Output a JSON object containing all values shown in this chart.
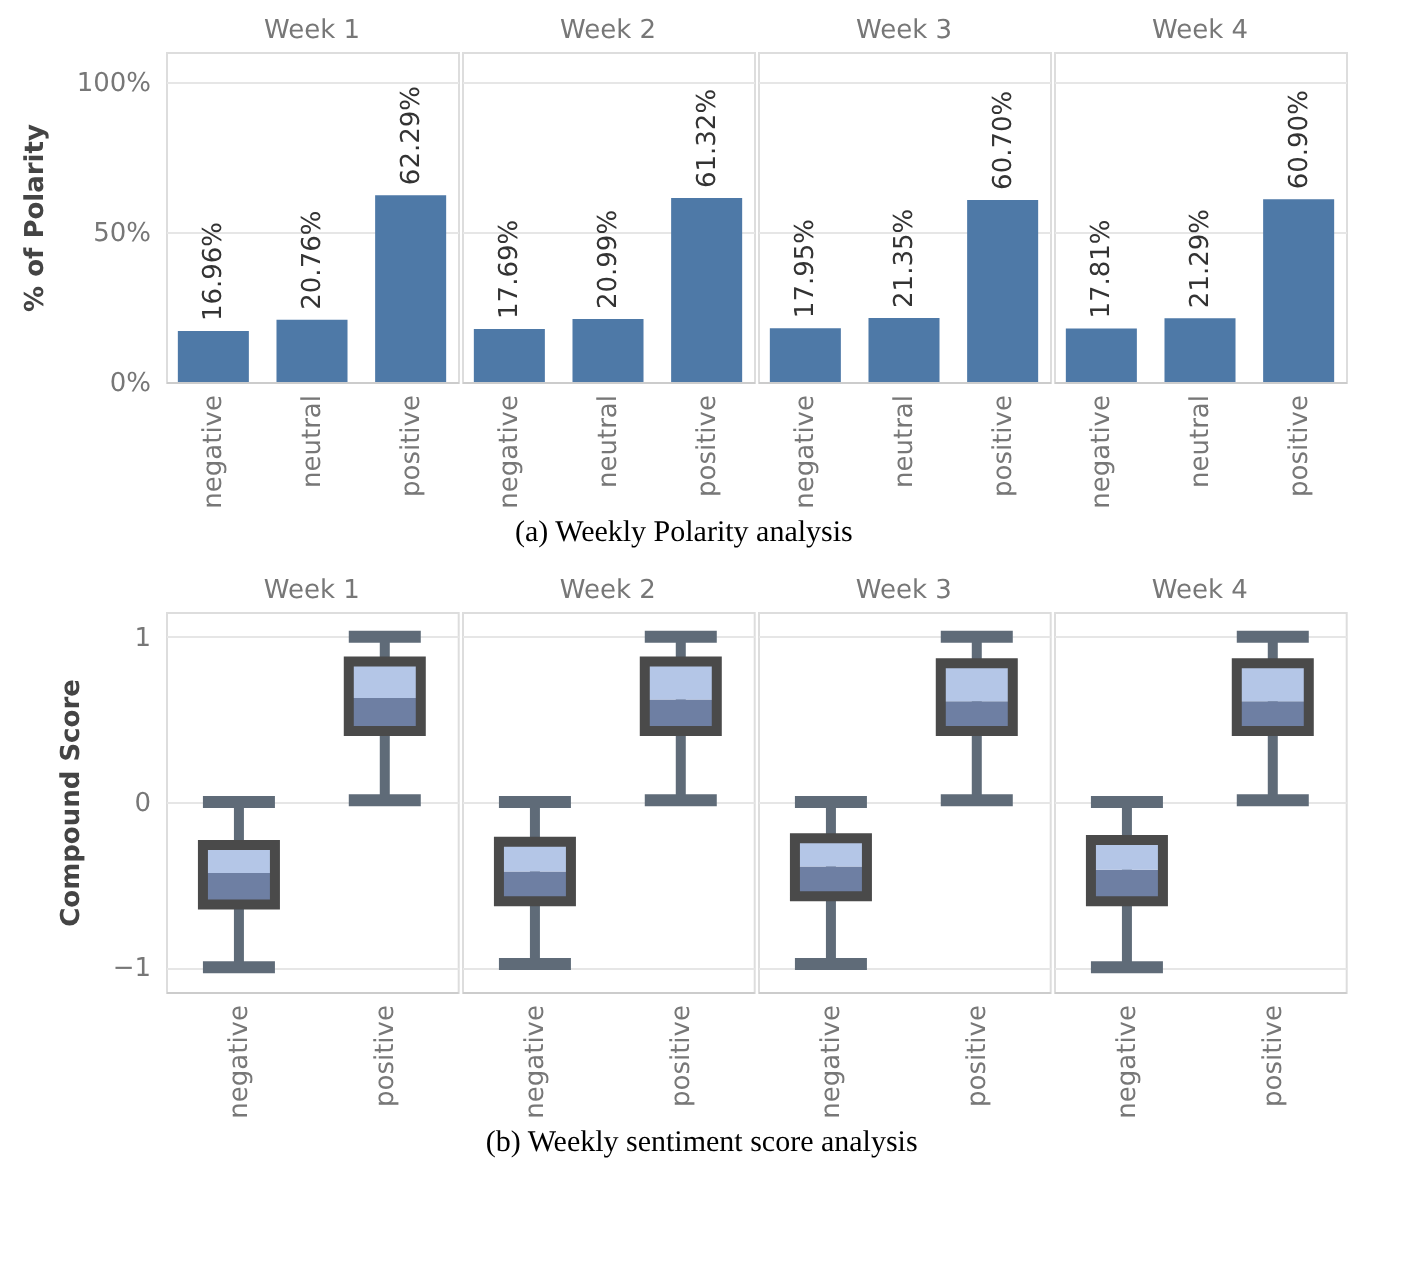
{
  "chart_data": [
    {
      "type": "bar",
      "title": "Week 1",
      "ylabel": "% of Polarity",
      "annotations": [
        "(a)      Weekly Polarity analysis"
      ],
      "categories": [
        "negative",
        "neutral",
        "positive"
      ],
      "values": [
        16.96,
        20.76,
        62.29
      ],
      "value_labels": [
        "16.96%",
        "20.76%",
        "62.29%"
      ],
      "color": "#4e79a7",
      "ylim": [
        0,
        110
      ],
      "yticks": [
        {
          "value": 0,
          "label": "0%"
        },
        {
          "value": 50,
          "label": "50%"
        },
        {
          "value": 100,
          "label": "100%"
        }
      ],
      "grid": "y"
    },
    {
      "type": "bar",
      "title": "Week 2",
      "categories": [
        "negative",
        "neutral",
        "positive"
      ],
      "values": [
        17.69,
        20.99,
        61.32
      ],
      "value_labels": [
        "17.69%",
        "20.99%",
        "61.32%"
      ],
      "color": "#4e79a7",
      "ylim": [
        0,
        110
      ],
      "yticks": [
        0,
        50,
        100
      ],
      "grid": "y",
      "tick_labels": "x"
    },
    {
      "type": "bar",
      "title": "Week 3",
      "categories": [
        "negative",
        "neutral",
        "positive"
      ],
      "values": [
        17.95,
        21.35,
        60.7
      ],
      "value_labels": [
        "17.95%",
        "21.35%",
        "60.70%"
      ],
      "color": "#4e79a7",
      "ylim": [
        0,
        110
      ],
      "yticks": [
        0,
        50,
        100
      ],
      "grid": "y",
      "tick_labels": "x"
    },
    {
      "type": "bar",
      "title": "Week 4",
      "categories": [
        "negative",
        "neutral",
        "positive"
      ],
      "values": [
        17.81,
        21.29,
        60.9
      ],
      "value_labels": [
        "17.81%",
        "21.29%",
        "60.90%"
      ],
      "color": "#4e79a7",
      "ylim": [
        0,
        110
      ],
      "yticks": [
        0,
        50,
        100
      ],
      "grid": "y",
      "tick_labels": "x"
    },
    {
      "type": "box",
      "title": "Week 1",
      "ylabel": "Compound Score",
      "annotations": [
        "(b) Weekly sentiment score analysis"
      ],
      "categories": [
        "negative",
        "positive"
      ],
      "boxes": [
        {
          "low": -1.0,
          "q1": -0.62,
          "median": -0.43,
          "q3": -0.26,
          "high": 0.0
        },
        {
          "low": 0.01,
          "q1": 0.43,
          "median": 0.63,
          "q3": 0.85,
          "high": 1.0
        }
      ],
      "ylim": [
        -1.15,
        1.15
      ],
      "yticks": [
        -1,
        0,
        1
      ],
      "grid": "y"
    },
    {
      "type": "box",
      "title": "Week 2",
      "categories": [
        "negative",
        "positive"
      ],
      "boxes": [
        {
          "low": -0.98,
          "q1": -0.6,
          "median": -0.42,
          "q3": -0.24,
          "high": 0.0
        },
        {
          "low": 0.01,
          "q1": 0.43,
          "median": 0.62,
          "q3": 0.85,
          "high": 1.0
        }
      ],
      "ylim": [
        -1.15,
        1.15
      ],
      "yticks": [
        -1,
        0,
        1
      ],
      "grid": "y",
      "tick_labels": "x"
    },
    {
      "type": "box",
      "title": "Week 3",
      "categories": [
        "negative",
        "positive"
      ],
      "boxes": [
        {
          "low": -0.98,
          "q1": -0.57,
          "median": -0.39,
          "q3": -0.22,
          "high": 0.0
        },
        {
          "low": 0.01,
          "q1": 0.43,
          "median": 0.61,
          "q3": 0.84,
          "high": 1.0
        }
      ],
      "ylim": [
        -1.15,
        1.15
      ],
      "yticks": [
        -1,
        0,
        1
      ],
      "grid": "y",
      "tick_labels": "x"
    },
    {
      "type": "box",
      "title": "Week 4",
      "categories": [
        "negative",
        "positive"
      ],
      "boxes": [
        {
          "low": -1.0,
          "q1": -0.6,
          "median": -0.41,
          "q3": -0.23,
          "high": 0.0
        },
        {
          "low": 0.01,
          "q1": 0.43,
          "median": 0.61,
          "q3": 0.84,
          "high": 1.0
        }
      ],
      "ylim": [
        -1.15,
        1.15
      ],
      "yticks": [
        -1,
        0,
        1
      ],
      "grid": "y",
      "tick_labels": "x"
    }
  ]
}
